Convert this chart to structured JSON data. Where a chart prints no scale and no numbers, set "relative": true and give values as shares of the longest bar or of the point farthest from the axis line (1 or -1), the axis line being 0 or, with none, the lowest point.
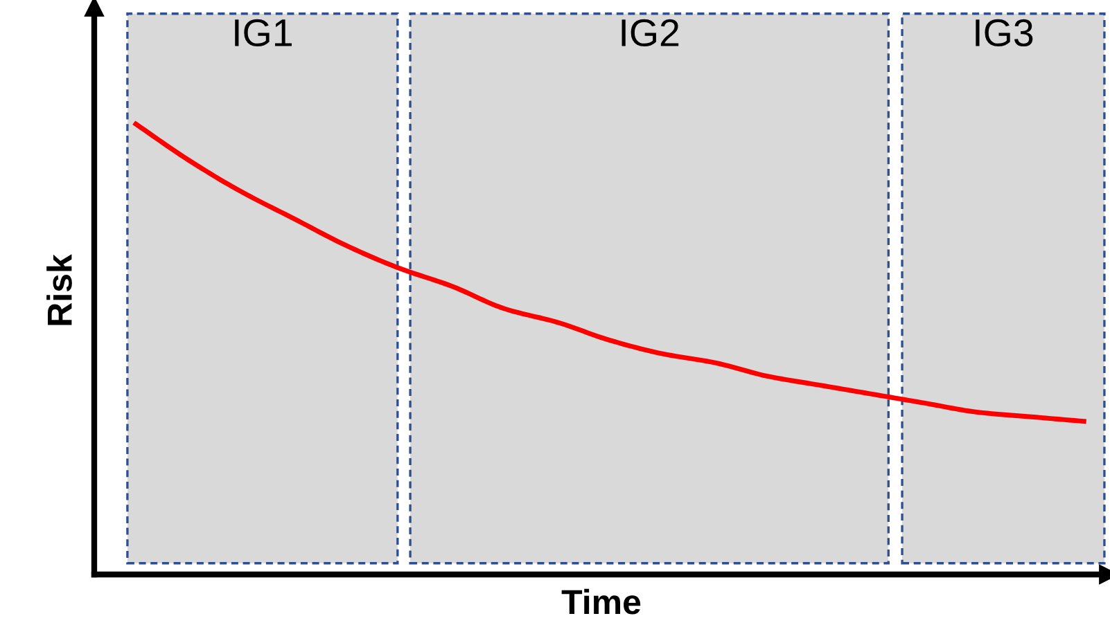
{
  "chart_data": {
    "type": "line",
    "relative": true,
    "xlabel": "Time",
    "ylabel": "Risk",
    "categories": [
      null,
      null,
      null,
      null,
      null,
      null,
      null,
      null,
      null,
      null,
      null,
      null,
      null,
      null,
      null,
      null,
      null,
      null,
      null
    ],
    "series": [
      {
        "color": "#ff0000",
        "values": [
          1.0,
          0.92,
          0.85,
          0.79,
          0.73,
          0.68,
          0.64,
          0.59,
          0.56,
          0.52,
          0.49,
          0.47,
          0.44,
          0.42,
          0.4,
          0.38,
          0.36,
          0.35,
          0.34
        ]
      }
    ],
    "annotations": [
      "IG1",
      "IG2",
      "IG3"
    ],
    "line_style": "solid",
    "grid": false,
    "legend": false
  }
}
